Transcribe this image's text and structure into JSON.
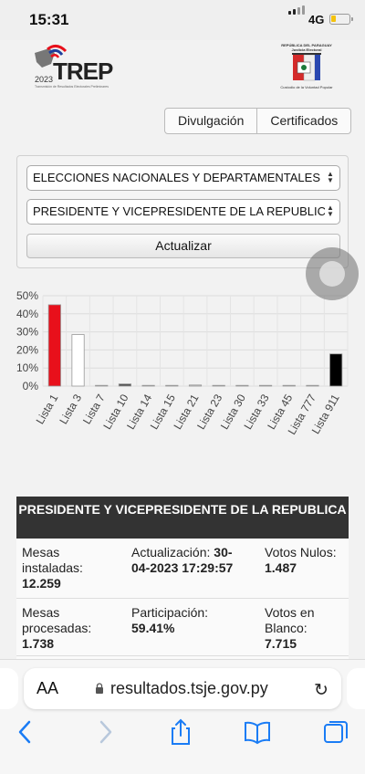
{
  "status": {
    "time": "15:31",
    "network": "4G",
    "battery_level": 0.3
  },
  "header": {
    "trep_name": "TREP",
    "trep_year": "2023",
    "trep_subtitle": "Transmisión de Resultados Electorales Preliminares",
    "tsje_top": "REPÚBLICA DEL PARAGUAY Justicia Electoral",
    "tsje_bottom": "Custodio de la Voluntad Popular"
  },
  "tabs": [
    {
      "label": "Divulgación"
    },
    {
      "label": "Certificados"
    }
  ],
  "filters": {
    "election": "ELECCIONES NACIONALES Y DEPARTAMENTALES",
    "race": "PRESIDENTE Y VICEPRESIDENTE DE LA REPUBLICA",
    "update_button": "Actualizar"
  },
  "chart_data": {
    "type": "bar",
    "categories": [
      "Lista 1",
      "Lista 3",
      "Lista 7",
      "Lista 10",
      "Lista 14",
      "Lista 15",
      "Lista 21",
      "Lista 23",
      "Lista 30",
      "Lista 33",
      "Lista 45",
      "Lista 777",
      "Lista 911"
    ],
    "values": [
      45,
      28.5,
      0.3,
      1.2,
      0.2,
      0.3,
      0.6,
      0.2,
      0.2,
      0.3,
      0.2,
      0.3,
      17.8
    ],
    "colors": [
      "#e8101b",
      "#ffffff",
      "#cccccc",
      "#555555",
      "#cccccc",
      "#cccccc",
      "#cccccc",
      "#cccccc",
      "#cccccc",
      "#cccccc",
      "#cccccc",
      "#cccccc",
      "#000000"
    ],
    "y_ticks": [
      "0%",
      "10%",
      "20%",
      "30%",
      "40%",
      "50%"
    ],
    "ylim": [
      0,
      50
    ],
    "grid": true
  },
  "results": {
    "title": "PRESIDENTE Y VICEPRESIDENTE DE LA REPUBLICA",
    "mesas_instaladas_label": "Mesas instaladas:",
    "mesas_instaladas_value": "12.259",
    "actualizacion_label": "Actualización:",
    "actualizacion_value": "30-04-2023 17:29:57",
    "votos_nulos_label": "Votos Nulos:",
    "votos_nulos_value": "1.487",
    "mesas_procesadas_label": "Mesas procesadas:",
    "mesas_procesadas_value": "1.738",
    "participacion_label": "Participación:",
    "participacion_value": "59.41%",
    "votos_blanco_label": "Votos en Blanco:",
    "votos_blanco_value": "7.715"
  },
  "safari": {
    "text_size_label": "AA",
    "url": "resultados.tsje.gov.py"
  }
}
